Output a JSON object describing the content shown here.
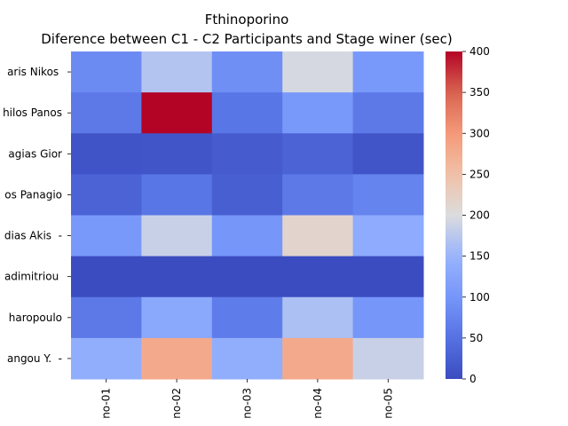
{
  "chart_data": {
    "type": "heatmap",
    "title": "Fthinoporino",
    "subtitle": "Diference between C1 - C2 Participants and Stage winer (sec)",
    "columns": [
      "no-01",
      "no-02",
      "no-03",
      "no-04",
      "no-05"
    ],
    "rows": [
      "aris Nikos ",
      "hilos Panos",
      "agias Gior",
      "os Panagio",
      "dias Akis  -",
      "adimitriou ",
      "haropoulo",
      "angou Y.  -"
    ],
    "values": [
      [
        85,
        170,
        90,
        195,
        105
      ],
      [
        60,
        400,
        55,
        105,
        60
      ],
      [
        10,
        12,
        20,
        30,
        12
      ],
      [
        30,
        55,
        25,
        60,
        75
      ],
      [
        105,
        185,
        100,
        215,
        135
      ],
      [
        0,
        0,
        0,
        0,
        0
      ],
      [
        60,
        130,
        65,
        165,
        100
      ],
      [
        140,
        280,
        140,
        280,
        185
      ]
    ],
    "colormap": "coolwarm",
    "vmin": 0,
    "vmax": 400,
    "colorbar_ticks": [
      0,
      50,
      100,
      150,
      200,
      250,
      300,
      350,
      400
    ]
  }
}
